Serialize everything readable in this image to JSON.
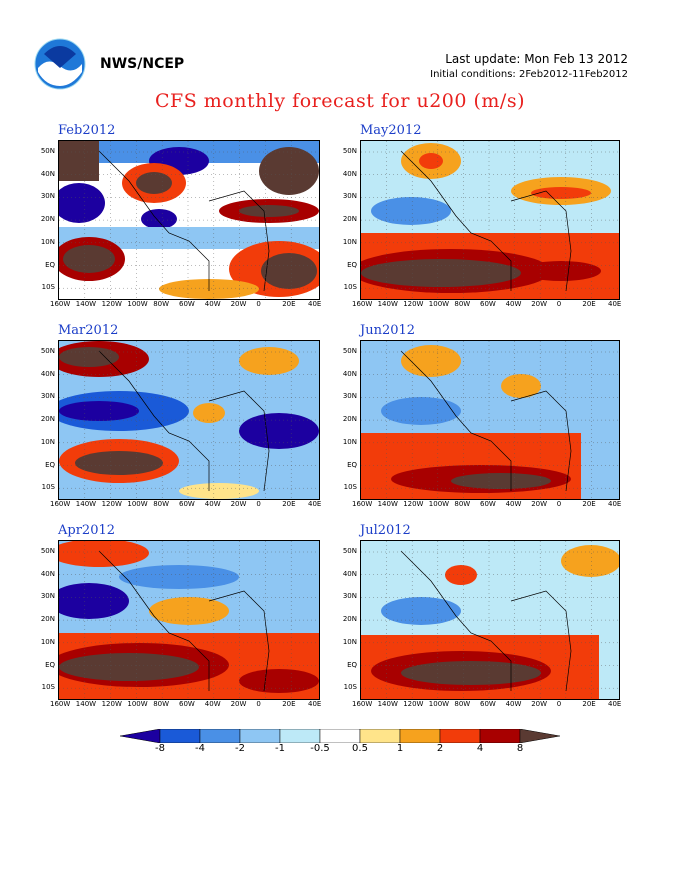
{
  "header": {
    "org": "NWS/NCEP",
    "last_update": "Last update: Mon Feb 13 2012",
    "initial_conditions": "Initial conditions: 2Feb2012-11Feb2012",
    "title": "CFS monthly forecast for u200 (m/s)"
  },
  "panels": [
    {
      "title": "Feb2012"
    },
    {
      "title": "May2012"
    },
    {
      "title": "Mar2012"
    },
    {
      "title": "Jun2012"
    },
    {
      "title": "Apr2012"
    },
    {
      "title": "Jul2012"
    }
  ],
  "lat_labels": [
    "50N",
    "40N",
    "30N",
    "20N",
    "10N",
    "EQ",
    "10S"
  ],
  "lon_labels": [
    "160W",
    "140W",
    "120W",
    "100W",
    "80W",
    "60W",
    "40W",
    "20W",
    "0",
    "20E",
    "40E"
  ],
  "colorbar": {
    "levels": [
      "-8",
      "-4",
      "-2",
      "-1",
      "-0.5",
      "0.5",
      "1",
      "2",
      "4",
      "8"
    ],
    "colors": [
      "#1c00a0",
      "#1a5ad8",
      "#4a90e6",
      "#8ec6f3",
      "#bde9f7",
      "#ffffff",
      "#ffe48a",
      "#f6a21e",
      "#f23c0a",
      "#a80000",
      "#5a3a32"
    ]
  }
}
